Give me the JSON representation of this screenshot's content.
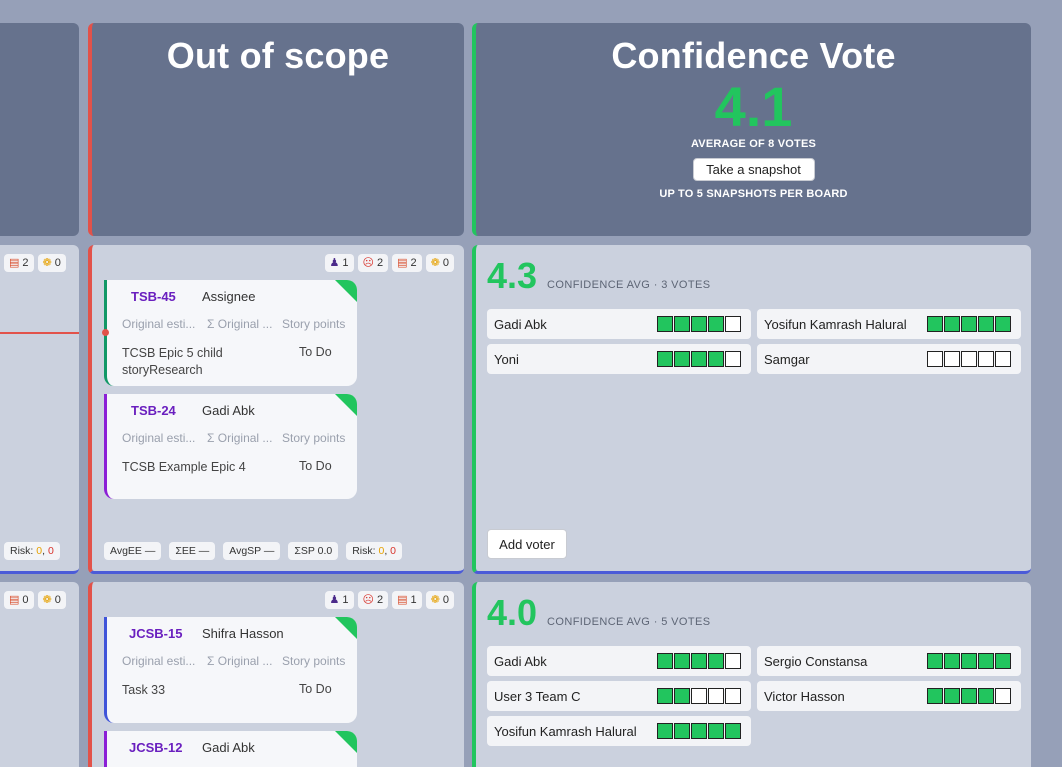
{
  "columns": {
    "out_of_scope": {
      "title": "Out of scope"
    },
    "confidence": {
      "title": "Confidence Vote",
      "average": "4.1",
      "average_label": "AVERAGE OF 8 VOTES",
      "snapshot_button": "Take a snapshot",
      "snapshot_note": "UP TO 5 SNAPSHOTS PER BOARD"
    }
  },
  "row1": {
    "left_chips": {
      "c1": "2",
      "c2": "0"
    },
    "left_risk": {
      "label": "Risk:",
      "v1": "0",
      "sep": ",",
      "v2": "0"
    },
    "chips": {
      "people": "1",
      "blocked": "2",
      "books": "2",
      "runner": "0"
    },
    "cards": [
      {
        "key": "TSB-45",
        "assignee": "Assignee",
        "f1": "Original esti...",
        "f2": "Σ Original ...",
        "f3": "Story points",
        "title": "TCSB Epic 5 child storyResearch",
        "status": "To Do",
        "accent": "#119866"
      },
      {
        "key": "TSB-24",
        "assignee": "Gadi Abk",
        "f1": "Original esti...",
        "f2": "Σ Original ...",
        "f3": "Story points",
        "title": "TCSB Example Epic 4",
        "status": "To Do",
        "accent": "#8b1fd6"
      }
    ],
    "footer": {
      "avg_ee": "AvgEE —",
      "sum_ee": "ΣEE —",
      "avg_sp": "AvgSP —",
      "sum_sp": "ΣSP 0.0",
      "risk_label": "Risk:",
      "risk_v1": "0",
      "risk_sep": ",",
      "risk_v2": "0"
    },
    "vote": {
      "average": "4.3",
      "label": "CONFIDENCE AVG · 3 VOTES",
      "add_voter": "Add voter",
      "voters": [
        {
          "name": "Gadi Abk",
          "score": 4
        },
        {
          "name": "Yosifun Kamrash Halural",
          "score": 5
        },
        {
          "name": "Yoni",
          "score": 4
        },
        {
          "name": "Samgar",
          "score": 0
        }
      ]
    }
  },
  "row2": {
    "left_chips": {
      "c1": "0",
      "c2": "0"
    },
    "chips": {
      "people": "1",
      "blocked": "2",
      "books": "1",
      "runner": "0"
    },
    "cards": [
      {
        "key": "JCSB-15",
        "assignee": "Shifra Hasson",
        "f1": "Original esti...",
        "f2": "Σ Original ...",
        "f3": "Story points",
        "title": "Task 33",
        "status": "To Do",
        "accent": "#3f54d9"
      },
      {
        "key": "JCSB-12",
        "assignee": "Gadi Abk",
        "accent": "#8b1fd6"
      }
    ],
    "vote": {
      "average": "4.0",
      "label": "CONFIDENCE AVG · 5 VOTES",
      "voters": [
        {
          "name": "Gadi Abk",
          "score": 4
        },
        {
          "name": "Sergio Constansa",
          "score": 5
        },
        {
          "name": "User 3 Team C",
          "score": 2
        },
        {
          "name": "Victor Hasson",
          "score": 4
        },
        {
          "name": "Yosifun Kamrash Halural",
          "score": 5
        }
      ]
    }
  },
  "icons": [
    "person-icon",
    "blocked-icon",
    "book-icon",
    "runner-icon",
    "corner-flag-icon",
    "link-dot-icon"
  ],
  "colors": {
    "background": "#96a0b8",
    "header": "#66728d",
    "lane": "#cbd1de",
    "red": "#e2524a",
    "green": "#22c55e",
    "blue": "#4b5bd8",
    "purple": "#6a1fbf",
    "risk_yellow": "#e6a100",
    "risk_red": "#d8342c"
  }
}
